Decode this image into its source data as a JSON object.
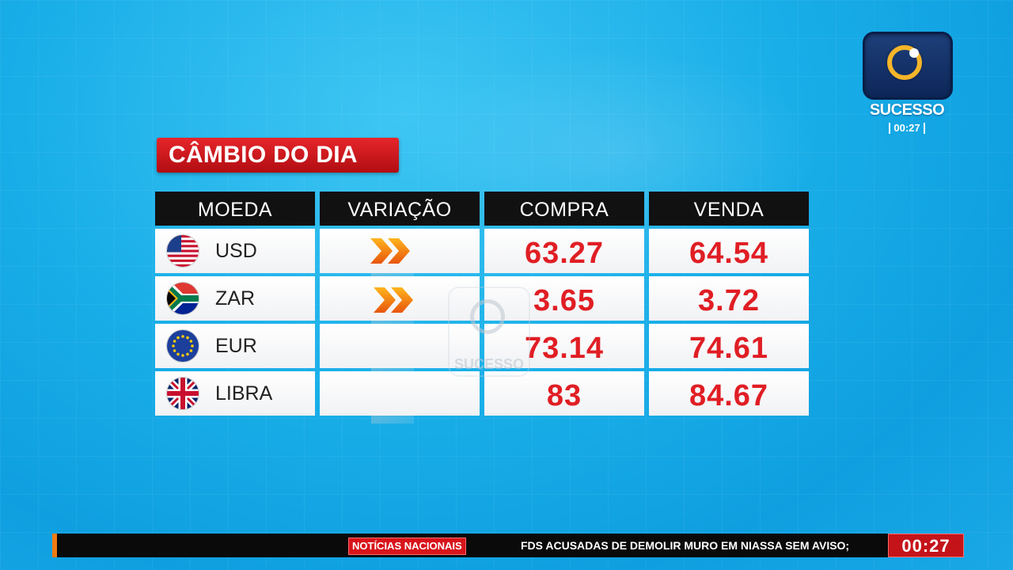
{
  "channel": {
    "name": "SUCESSO",
    "clock": "00:27"
  },
  "title": "CÂMBIO DO DIA",
  "table": {
    "headers": [
      "MOEDA",
      "VARIAÇÃO",
      "COMPRA",
      "VENDA"
    ],
    "rows": [
      {
        "currency": "USD",
        "flag": "usa-flag-icon",
        "variation": "up-arrows-icon",
        "compra": "63.27",
        "venda": "64.54"
      },
      {
        "currency": "ZAR",
        "flag": "south-africa-flag-icon",
        "variation": "up-arrows-icon",
        "compra": "3.65",
        "venda": "3.72"
      },
      {
        "currency": "EUR",
        "flag": "eu-flag-icon",
        "variation": "",
        "compra": "73.14",
        "venda": "74.61"
      },
      {
        "currency": "LIBRA",
        "flag": "uk-flag-icon",
        "variation": "",
        "compra": "83",
        "venda": "84.67"
      }
    ]
  },
  "watermark": {
    "name": "SUCESSO"
  },
  "ticker": {
    "label": "NOTÍCIAS NACIONAIS",
    "text": "FDS ACUSADAS DE DEMOLIR MURO EM NIASSA SEM AVISO;",
    "clock": "00:27"
  },
  "colors": {
    "background": "#19aee8",
    "title_red": "#c8141a",
    "value_red": "#e01e24",
    "header_black": "#111111",
    "logo_gold": "#f5b52a"
  }
}
